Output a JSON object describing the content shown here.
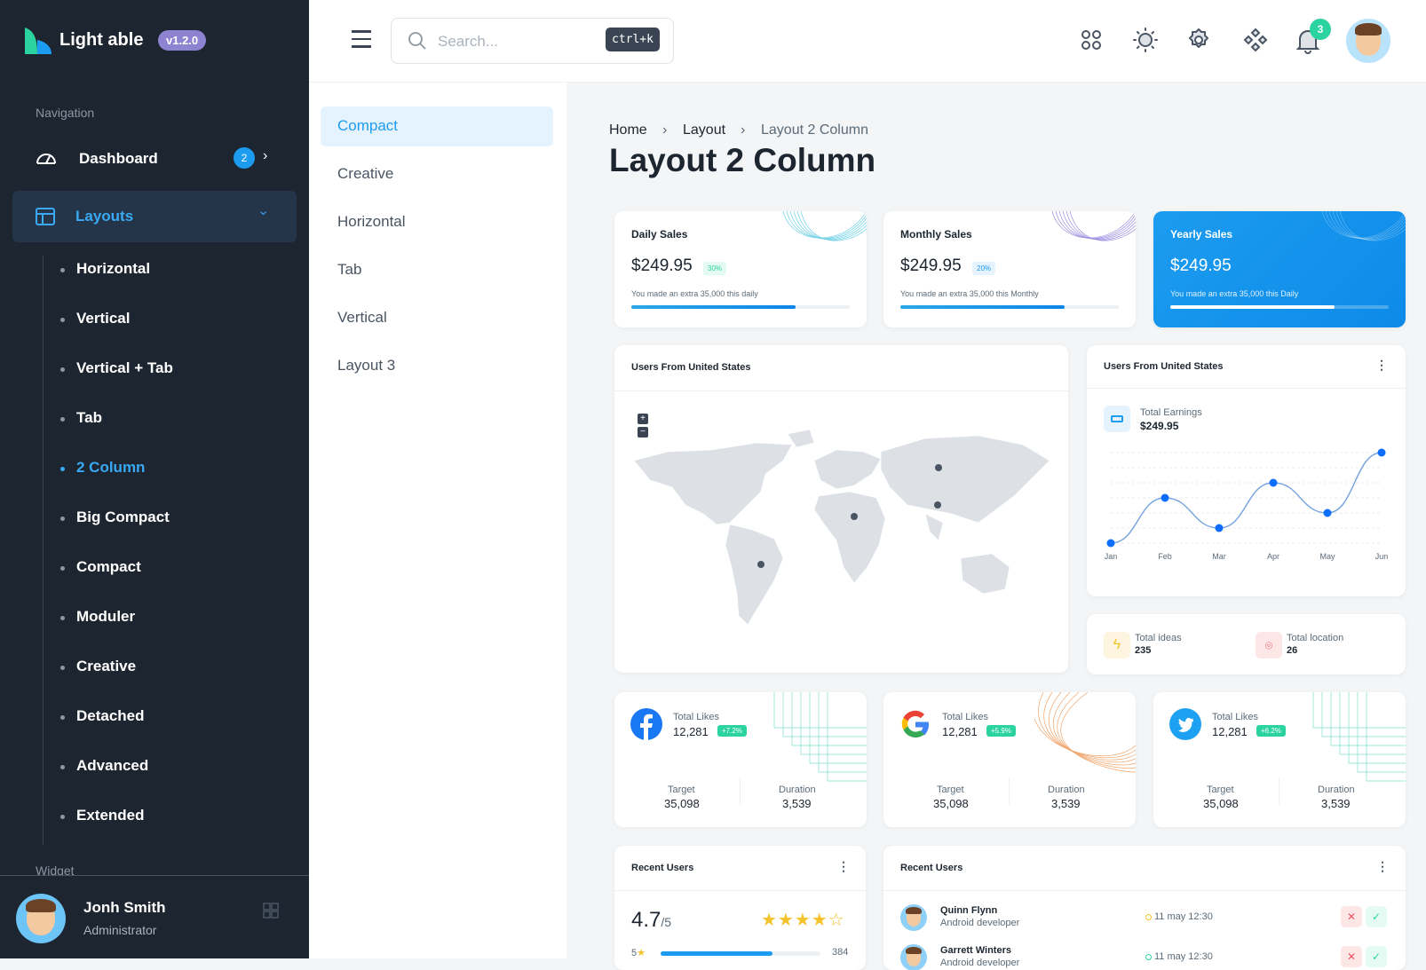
{
  "brand": {
    "name": "Light able",
    "version": "v1.2.0"
  },
  "sidebar": {
    "section_label": "Navigation",
    "dashboard": {
      "label": "Dashboard",
      "badge": "2"
    },
    "layouts": {
      "label": "Layouts"
    },
    "items": [
      {
        "label": "Horizontal"
      },
      {
        "label": "Vertical"
      },
      {
        "label": "Vertical + Tab"
      },
      {
        "label": "Tab"
      },
      {
        "label": "2 Column",
        "active": true
      },
      {
        "label": "Big Compact"
      },
      {
        "label": "Compact"
      },
      {
        "label": "Moduler"
      },
      {
        "label": "Creative"
      },
      {
        "label": "Detached"
      },
      {
        "label": "Advanced"
      },
      {
        "label": "Extended"
      }
    ],
    "widget_label": "Widget",
    "user": {
      "name": "Jonh Smith",
      "role": "Administrator"
    }
  },
  "header": {
    "search_placeholder": "Search...",
    "shortcut": "ctrl+k",
    "notification_count": "3",
    "icons": [
      "apps-icon",
      "sun-icon",
      "gear-icon",
      "components-icon",
      "bell-icon"
    ]
  },
  "subnav": {
    "items": [
      {
        "label": "Compact",
        "active": true
      },
      {
        "label": "Creative"
      },
      {
        "label": "Horizontal"
      },
      {
        "label": "Tab"
      },
      {
        "label": "Vertical"
      },
      {
        "label": "Layout 3"
      }
    ]
  },
  "breadcrumb": [
    "Home",
    "Layout",
    "Layout 2 Column"
  ],
  "page_title": "Layout 2 Column",
  "sales": [
    {
      "title": "Daily Sales",
      "value": "$249.95",
      "pill": "30%",
      "note": "You made an extra 35,000 this daily",
      "progress": 75
    },
    {
      "title": "Monthly Sales",
      "value": "$249.95",
      "pill": "20%",
      "note": "You made an extra 35,000 this Monthly",
      "progress": 75
    },
    {
      "title": "Yearly Sales",
      "value": "$249.95",
      "note": "You made an extra 35,000 this Daily",
      "progress": 75
    }
  ],
  "map_card": {
    "title": "Users From United States",
    "zoom_in": "+",
    "zoom_out": "−"
  },
  "earnings_card": {
    "title": "Users From United States",
    "label": "Total Earnings",
    "value": "$249.95"
  },
  "chart_data": {
    "type": "line",
    "categories": [
      "Jan",
      "Feb",
      "Mar",
      "Apr",
      "May",
      "Jun"
    ],
    "values": [
      0,
      3,
      1,
      4,
      2,
      6
    ],
    "ylim": [
      0,
      6
    ],
    "grid": true,
    "color": "#0d6efd"
  },
  "stats": {
    "ideas": {
      "label": "Total ideas",
      "value": "235"
    },
    "location": {
      "label": "Total location",
      "value": "26"
    }
  },
  "social": [
    {
      "network": "facebook",
      "label": "Total Likes",
      "value": "12,281",
      "pill": "+7.2%",
      "target_label": "Target",
      "target": "35,098",
      "duration_label": "Duration",
      "duration": "3,539"
    },
    {
      "network": "google",
      "label": "Total Likes",
      "value": "12,281",
      "pill": "+5.9%",
      "target_label": "Target",
      "target": "35,098",
      "duration_label": "Duration",
      "duration": "3,539"
    },
    {
      "network": "twitter",
      "label": "Total Likes",
      "value": "12,281",
      "pill": "+6.2%",
      "target_label": "Target",
      "target": "35,098",
      "duration_label": "Duration",
      "duration": "3,539"
    }
  ],
  "rating_card": {
    "title": "Recent Users",
    "score": "4.7",
    "out_of": "/5",
    "rows": [
      {
        "star": "5",
        "count": "384",
        "fraction": 0.7
      }
    ]
  },
  "recent_users": {
    "title": "Recent Users",
    "users": [
      {
        "name": "Quinn Flynn",
        "role": "Android developer",
        "time": "11 may 12:30",
        "status_color": "#f4c22b"
      },
      {
        "name": "Garrett Winters",
        "role": "Android developer",
        "time": "11 may 12:30",
        "status_color": "#2ad3a0"
      }
    ]
  }
}
